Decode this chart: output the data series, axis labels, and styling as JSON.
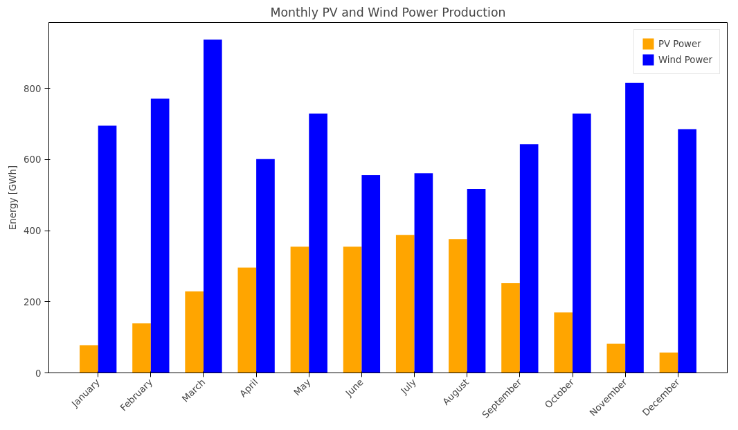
{
  "chart_data": {
    "type": "bar",
    "title": "Monthly PV and Wind Power Production",
    "ylabel": "Energy [GWh]",
    "categories": [
      "January",
      "February",
      "March",
      "April",
      "May",
      "June",
      "July",
      "August",
      "September",
      "October",
      "November",
      "December"
    ],
    "series": [
      {
        "name": "PV Power",
        "color": "#ffa500",
        "values": [
          78,
          139,
          229,
          296,
          355,
          355,
          388,
          376,
          252,
          170,
          82,
          57
        ]
      },
      {
        "name": "Wind Power",
        "color": "#0000ff",
        "values": [
          695,
          771,
          937,
          601,
          729,
          556,
          561,
          517,
          643,
          729,
          815,
          685
        ]
      }
    ],
    "ylim": [
      0,
      985
    ],
    "yticks": [
      0,
      200,
      400,
      600,
      800
    ],
    "grid": false,
    "legend": "top right"
  }
}
